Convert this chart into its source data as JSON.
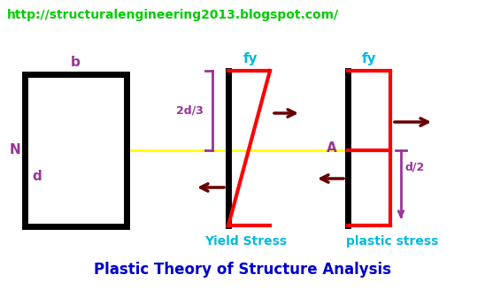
{
  "url_text": "http://structuralengineering2013.blogspot.com/",
  "url_color": "#00cc00",
  "url_fontsize": 10,
  "title_text": "Plastic Theory of Structure Analysis",
  "title_color": "#0000cc",
  "title_fontsize": 12,
  "bg_color": "#ffffff",
  "rect_color": "#000000",
  "red_color": "#ff0000",
  "arrow_color": "#660000",
  "purple": "#993399",
  "cyan": "#00bbdd",
  "yellow": "#ffff00",
  "yield_stress_label": "Yield Stress",
  "plastic_stress_label": "plastic stress",
  "N_label": "N",
  "d_label": "d",
  "b_label": "b",
  "fy_label": "fy",
  "twod3_label": "2d/3",
  "A_label": "A",
  "d2_label": "d/2"
}
